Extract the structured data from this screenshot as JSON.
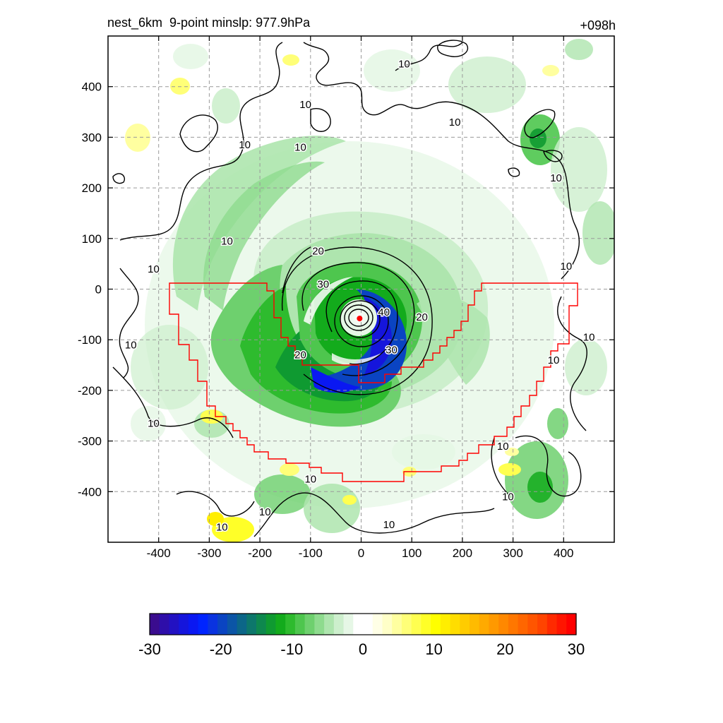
{
  "header": {
    "title": "nest_6km  9-point minslp: 977.9hPa",
    "forecast_hour": "+098h"
  },
  "chart_data": {
    "type": "heatmap",
    "title": "nest_6km  9-point minslp: 977.9hPa",
    "corner_label": "+098h",
    "xlabel": "",
    "ylabel": "",
    "xlim": [
      -500,
      500
    ],
    "ylim": [
      -500,
      500
    ],
    "x_ticks": [
      -400,
      -300,
      -200,
      -100,
      0,
      100,
      200,
      300,
      400
    ],
    "y_ticks": [
      400,
      300,
      200,
      100,
      0,
      -100,
      -200,
      -300,
      -400
    ],
    "x_tick_labels": [
      "-400",
      "-300",
      "-200",
      "-100",
      "0",
      "100",
      "200",
      "300",
      "400"
    ],
    "y_tick_labels": [
      "400",
      "300",
      "200",
      "100",
      "0",
      "-100",
      "-200",
      "-300",
      "-400"
    ],
    "grid": true,
    "grid_style": "dashed gray",
    "storm_center": {
      "x": -3,
      "y": -58
    },
    "contour_levels": [
      10,
      20,
      30,
      40
    ],
    "contour_labels": [
      {
        "text": "10",
        "x": 85,
        "y": 445
      },
      {
        "text": "10",
        "x": -110,
        "y": 365
      },
      {
        "text": "10",
        "x": -120,
        "y": 280
      },
      {
        "text": "10",
        "x": -230,
        "y": 285
      },
      {
        "text": "10",
        "x": 185,
        "y": 330
      },
      {
        "text": "10",
        "x": 385,
        "y": 220
      },
      {
        "text": "10",
        "x": -265,
        "y": 95
      },
      {
        "text": "10",
        "x": -410,
        "y": 40
      },
      {
        "text": "10",
        "x": 405,
        "y": 45
      },
      {
        "text": "10",
        "x": -455,
        "y": -110
      },
      {
        "text": "10",
        "x": 450,
        "y": -95
      },
      {
        "text": "10",
        "x": -410,
        "y": -265
      },
      {
        "text": "10",
        "x": 380,
        "y": -140
      },
      {
        "text": "10",
        "x": 280,
        "y": -310
      },
      {
        "text": "10",
        "x": 290,
        "y": -410
      },
      {
        "text": "10",
        "x": -100,
        "y": -375
      },
      {
        "text": "10",
        "x": -190,
        "y": -440
      },
      {
        "text": "10",
        "x": -275,
        "y": -470
      },
      {
        "text": "10",
        "x": 55,
        "y": -465
      },
      {
        "text": "20",
        "x": -85,
        "y": 75
      },
      {
        "text": "20",
        "x": 120,
        "y": -55
      },
      {
        "text": "20",
        "x": -120,
        "y": -130
      },
      {
        "text": "30",
        "x": -75,
        "y": 10
      },
      {
        "text": "30",
        "x": 60,
        "y": -120
      },
      {
        "text": "40",
        "x": 45,
        "y": -45
      }
    ],
    "colorbar": {
      "min": -30,
      "max": 30,
      "tick_values": [
        -30,
        -20,
        -10,
        0,
        10,
        20,
        30
      ],
      "tick_labels": [
        "-30",
        "-20",
        "-10",
        "0",
        "10",
        "20",
        "30"
      ],
      "colors": [
        "#3a0c8e",
        "#2e0ea9",
        "#2211c2",
        "#1515dc",
        "#0a18f2",
        "#0024ff",
        "#0a33e0",
        "#0a44c2",
        "#0b55a6",
        "#0c6688",
        "#0d776b",
        "#0e884e",
        "#0f9a31",
        "#13ab1c",
        "#2ebb2e",
        "#4ec64e",
        "#6ed06e",
        "#8edb8e",
        "#aee5ae",
        "#cdefcd",
        "#e6f7e6",
        "#ffffff",
        "#ffffff",
        "#ffffe6",
        "#ffffc8",
        "#ffffa0",
        "#ffff78",
        "#ffff50",
        "#ffff28",
        "#ffff00",
        "#ffee00",
        "#ffdd00",
        "#ffcc00",
        "#ffbb00",
        "#ffaa00",
        "#ff9900",
        "#ff8800",
        "#ff7700",
        "#ff6600",
        "#ff5500",
        "#ff4400",
        "#ff2a00",
        "#ff1500",
        "#ff0000"
      ]
    },
    "colors": {
      "boundary": "#ff0000",
      "contour": "#000000",
      "center_marker": "#ff0000",
      "grid": "#9a9a9a"
    }
  }
}
